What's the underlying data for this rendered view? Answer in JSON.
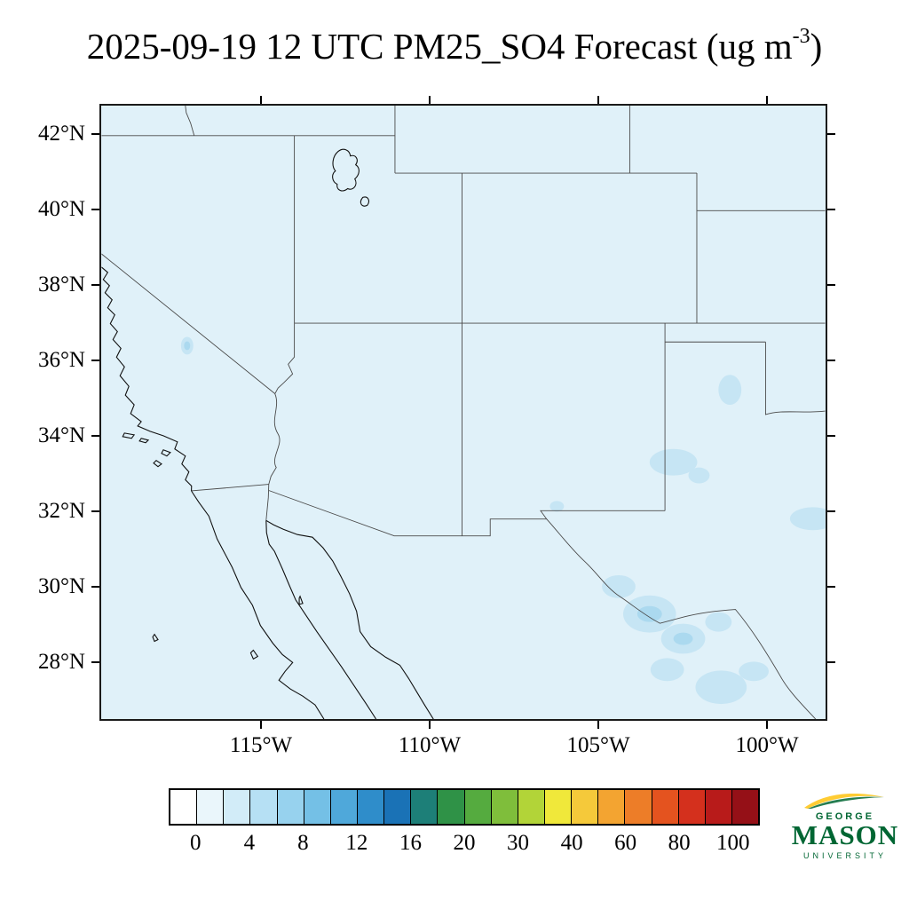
{
  "title": {
    "main": "2025-09-19 12 UTC PM25_SO4 Forecast (ug m",
    "superscript": "-3",
    "suffix": ")"
  },
  "axes": {
    "y_tick_labels": [
      "42°N",
      "40°N",
      "38°N",
      "36°N",
      "34°N",
      "32°N",
      "30°N",
      "28°N"
    ],
    "x_tick_labels": [
      "115°W",
      "110°W",
      "105°W",
      "100°W"
    ]
  },
  "colorbar": {
    "tick_labels": [
      "0",
      "4",
      "8",
      "12",
      "16",
      "20",
      "30",
      "40",
      "60",
      "80",
      "100"
    ],
    "segment_colors": [
      "#ffffff",
      "#eaf6fb",
      "#d2ecf8",
      "#b6e0f4",
      "#97d2ee",
      "#74c0e6",
      "#4fa8da",
      "#2f8dca",
      "#1a72b6",
      "#1d7f78",
      "#2f9247",
      "#55ab3f",
      "#7fbe3b",
      "#b2d438",
      "#f0e83a",
      "#f5c93a",
      "#f3a431",
      "#ed7d28",
      "#e4531f",
      "#d4301d",
      "#b81b1a",
      "#951017"
    ]
  },
  "map": {
    "fill_color": "#e0f1f9",
    "enhancement_color": "#c6e5f4",
    "enhancement_core_color": "#abd9ef",
    "border_color": "#4a4a4a",
    "coast_color": "#101010"
  },
  "logo": {
    "line1": "GEORGE",
    "line2": "MASON",
    "line3": "UNIVERSITY",
    "green": "#006633",
    "yellow": "#ffcc33"
  },
  "chart_data": {
    "type": "map",
    "title": "2025-09-19 12 UTC PM25_SO4 Forecast (ug m-3)",
    "variable": "PM25_SO4",
    "units": "ug m-3",
    "valid_time": "2025-09-19 12 UTC",
    "lat_ticks_deg_n": [
      42,
      40,
      38,
      36,
      34,
      32,
      30,
      28
    ],
    "lon_ticks_deg_w": [
      115,
      110,
      105,
      100
    ],
    "colorbar_tick_values": [
      0,
      4,
      8,
      12,
      16,
      20,
      30,
      40,
      60,
      80,
      100
    ],
    "field_summary": "Sulfate PM2.5 near 0-2 ug m-3 over the entire southwestern-US domain (uniform pale blue), with faint 2-4 ug m-3 patches over central California, eastern New Mexico, the Big Bend / Rio Grande area of west Texas, and south Texas."
  }
}
